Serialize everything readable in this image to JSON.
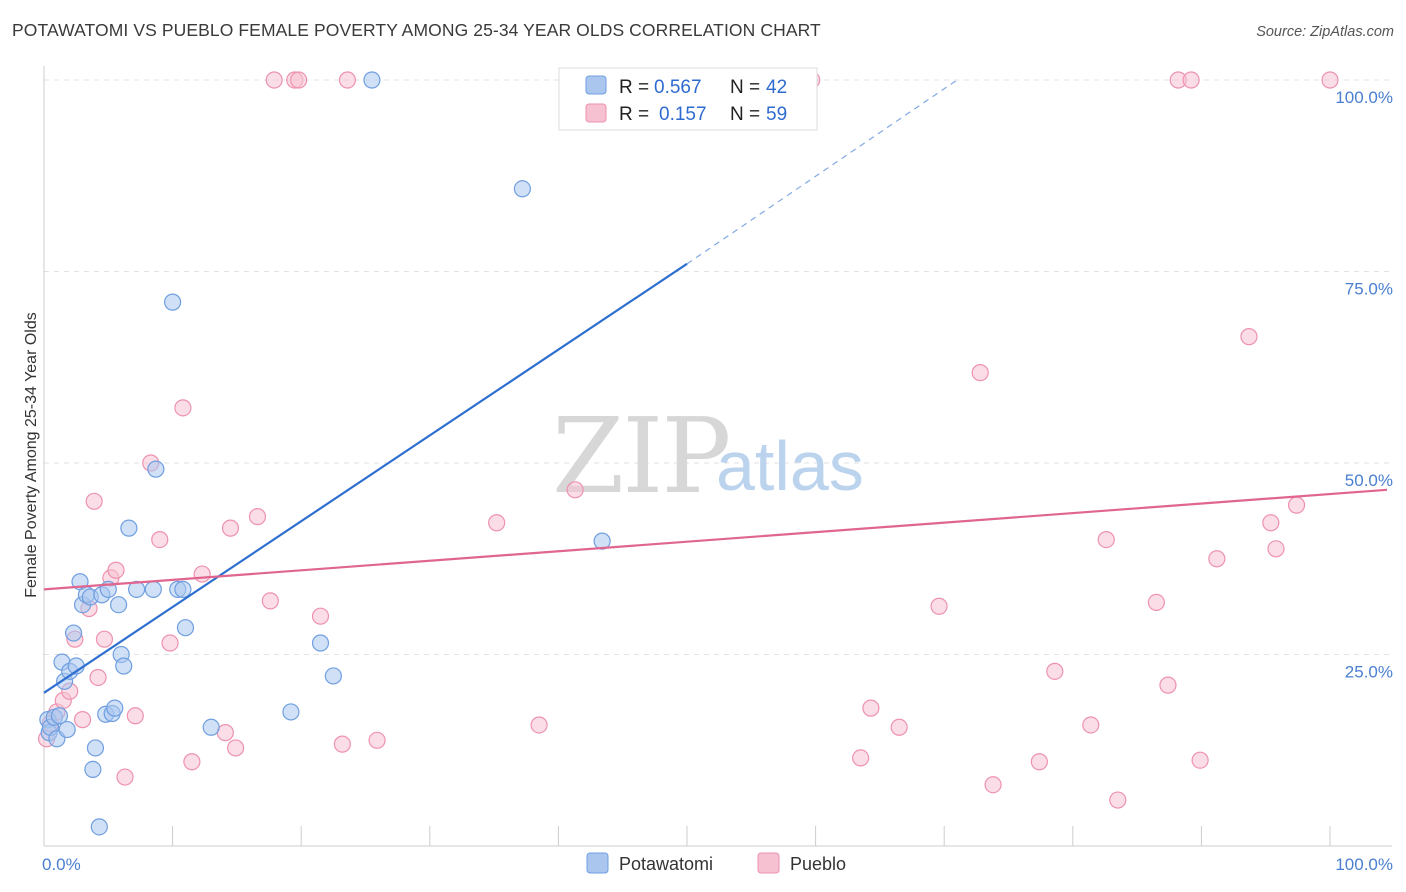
{
  "title": "POTAWATOMI VS PUEBLO FEMALE POVERTY AMONG 25-34 YEAR OLDS CORRELATION CHART",
  "source": "Source: ZipAtlas.com",
  "watermark": {
    "zip": "ZIP",
    "atlas": "atlas"
  },
  "colors": {
    "potawatomi_fill": "#aac6ee",
    "potawatomi_stroke": "#6f9fe0",
    "potawatomi_line": "#2f6fd0",
    "pueblo_fill": "#f6c1d1",
    "pueblo_stroke": "#ee92af",
    "pueblo_line": "#e0668f",
    "grid": "#e2e2e2",
    "tick_text": "#4a7fd1"
  },
  "legend": {
    "items": [
      {
        "r_label": "R =",
        "r_value": "0.567",
        "n_label": "N =",
        "n_value": "42"
      },
      {
        "r_label": "R =",
        "r_value": "0.157",
        "n_label": "N =",
        "n_value": "59"
      }
    ]
  },
  "chart_data": {
    "type": "scatter",
    "title": "POTAWATOMI VS PUEBLO FEMALE POVERTY AMONG 25-34 YEAR OLDS CORRELATION CHART",
    "xlabel": "",
    "ylabel": "Female Poverty Among 25-34 Year Olds",
    "xlim": [
      0,
      100
    ],
    "ylim": [
      0,
      100
    ],
    "x_tick_labels": [
      "0.0%",
      "100.0%"
    ],
    "y_tick_labels": [
      "100.0%",
      "75.0%",
      "50.0%",
      "25.0%"
    ],
    "y_ticks": [
      100,
      75,
      50,
      25
    ],
    "grid": true,
    "legend_position": "top-center",
    "series": [
      {
        "name": "Potawatomi",
        "r": 0.567,
        "n": 42,
        "trend": {
          "x0": 0,
          "y0": 20,
          "x1": 50,
          "y1": 76,
          "dashed_to_x": 71,
          "dashed_to_y": 100
        },
        "points": [
          [
            0.3,
            16.5
          ],
          [
            0.4,
            14.8
          ],
          [
            0.5,
            15.5
          ],
          [
            0.8,
            16.8
          ],
          [
            1.0,
            14.0
          ],
          [
            1.2,
            17.0
          ],
          [
            1.4,
            24.0
          ],
          [
            1.6,
            21.5
          ],
          [
            1.8,
            15.2
          ],
          [
            2.0,
            22.8
          ],
          [
            2.3,
            27.8
          ],
          [
            2.5,
            23.5
          ],
          [
            2.8,
            34.5
          ],
          [
            3.0,
            31.5
          ],
          [
            3.3,
            32.8
          ],
          [
            3.6,
            32.5
          ],
          [
            3.8,
            10.0
          ],
          [
            4.0,
            12.8
          ],
          [
            4.3,
            2.5
          ],
          [
            4.5,
            32.8
          ],
          [
            4.8,
            17.2
          ],
          [
            5.0,
            33.5
          ],
          [
            5.3,
            17.3
          ],
          [
            5.5,
            18.0
          ],
          [
            5.8,
            31.5
          ],
          [
            6.0,
            25.0
          ],
          [
            6.2,
            23.5
          ],
          [
            6.6,
            41.5
          ],
          [
            7.2,
            33.5
          ],
          [
            8.5,
            33.5
          ],
          [
            8.7,
            49.2
          ],
          [
            10.0,
            71.0
          ],
          [
            10.4,
            33.5
          ],
          [
            10.8,
            33.5
          ],
          [
            11.0,
            28.5
          ],
          [
            13.0,
            15.5
          ],
          [
            19.2,
            17.5
          ],
          [
            21.5,
            26.5
          ],
          [
            22.5,
            22.2
          ],
          [
            25.5,
            100.0
          ],
          [
            37.2,
            85.8
          ],
          [
            43.4,
            39.8
          ]
        ]
      },
      {
        "name": "Pueblo",
        "r": 0.157,
        "n": 59,
        "trend": {
          "x0": 0,
          "y0": 33.5,
          "x1": 100,
          "y1": 46.5
        },
        "points": [
          [
            0.2,
            14.0
          ],
          [
            0.5,
            16.0
          ],
          [
            1.0,
            17.5
          ],
          [
            1.5,
            19.0
          ],
          [
            2.0,
            20.2
          ],
          [
            2.4,
            27.0
          ],
          [
            3.0,
            16.5
          ],
          [
            3.5,
            31.0
          ],
          [
            3.9,
            45.0
          ],
          [
            4.2,
            22.0
          ],
          [
            4.7,
            27.0
          ],
          [
            5.2,
            35.0
          ],
          [
            5.6,
            36.0
          ],
          [
            6.3,
            9.0
          ],
          [
            7.1,
            17.0
          ],
          [
            8.3,
            50.0
          ],
          [
            9.0,
            40.0
          ],
          [
            9.8,
            26.5
          ],
          [
            10.8,
            57.2
          ],
          [
            11.5,
            11.0
          ],
          [
            12.3,
            35.5
          ],
          [
            14.1,
            14.8
          ],
          [
            14.5,
            41.5
          ],
          [
            14.9,
            12.8
          ],
          [
            16.6,
            43.0
          ],
          [
            17.6,
            32.0
          ],
          [
            17.9,
            100.0
          ],
          [
            19.5,
            100.0
          ],
          [
            19.8,
            100.0
          ],
          [
            21.5,
            30.0
          ],
          [
            23.2,
            13.3
          ],
          [
            23.6,
            100.0
          ],
          [
            25.9,
            13.8
          ],
          [
            35.2,
            42.2
          ],
          [
            38.5,
            15.8
          ],
          [
            41.3,
            46.5
          ],
          [
            59.7,
            100.0
          ],
          [
            63.5,
            11.5
          ],
          [
            64.3,
            18.0
          ],
          [
            66.5,
            15.5
          ],
          [
            69.6,
            31.3
          ],
          [
            72.8,
            61.8
          ],
          [
            73.8,
            8.0
          ],
          [
            77.4,
            11.0
          ],
          [
            78.6,
            22.8
          ],
          [
            81.4,
            15.8
          ],
          [
            82.6,
            40.0
          ],
          [
            83.5,
            6.0
          ],
          [
            86.5,
            31.8
          ],
          [
            87.4,
            21.0
          ],
          [
            88.2,
            100.0
          ],
          [
            89.2,
            100.0
          ],
          [
            89.9,
            11.2
          ],
          [
            91.2,
            37.5
          ],
          [
            93.7,
            66.5
          ],
          [
            95.4,
            42.2
          ],
          [
            95.8,
            38.8
          ],
          [
            97.4,
            44.5
          ],
          [
            100.0,
            100.0
          ]
        ]
      }
    ]
  }
}
